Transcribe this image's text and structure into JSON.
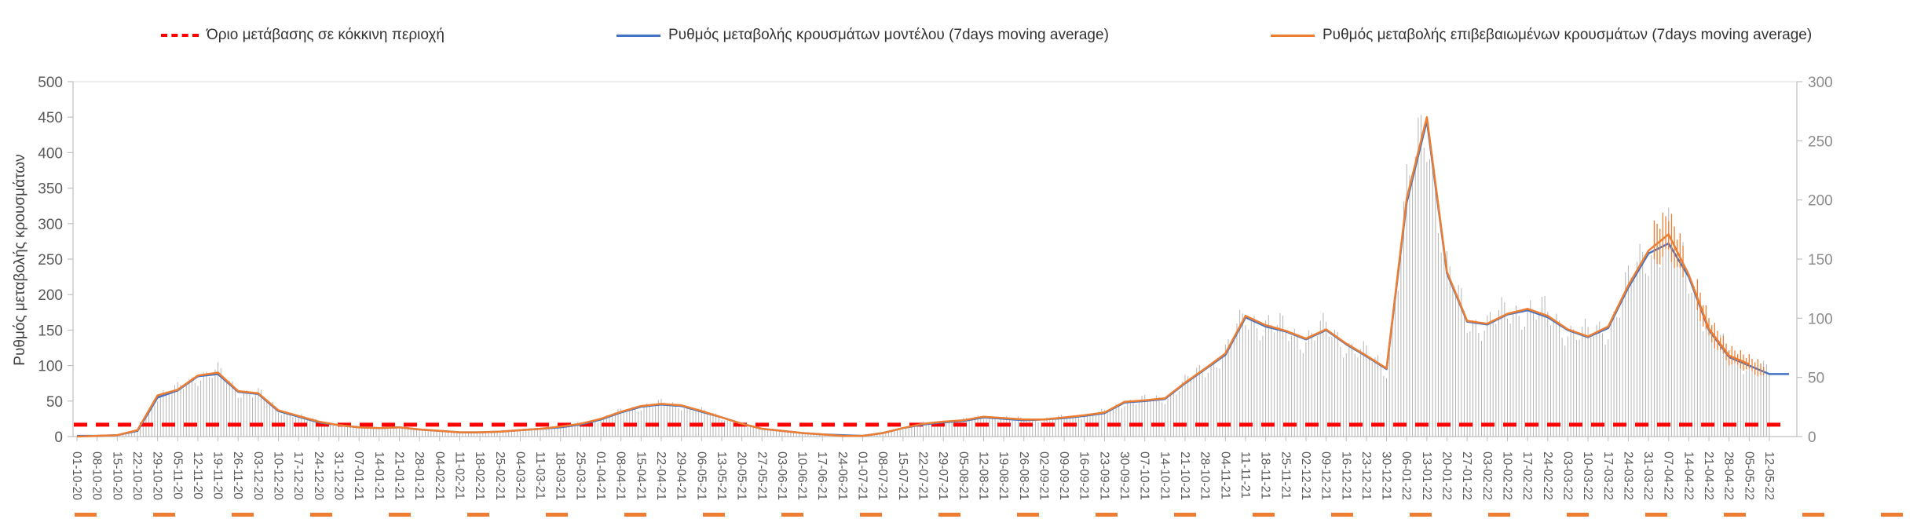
{
  "legend": {
    "items": [
      {
        "id": "threshold",
        "label": "Όριο μετάβασης σε κόκκινη περιοχή",
        "color": "#FF0000",
        "style": "dashed"
      },
      {
        "id": "model",
        "label": "Ρυθμός μεταβολής κρουσμάτων μοντέλου (7days moving average)",
        "color": "#4472C4",
        "style": "solid"
      },
      {
        "id": "confirmed",
        "label": "Ρυθμός μεταβολής επιβεβαιωμένων κρουσμάτων (7days moving average)",
        "color": "#ED7D31",
        "style": "solid"
      }
    ]
  },
  "chart_data": {
    "type": "line",
    "title": "",
    "ylabel_left": "Ρυθμός μεταβολής κρουσμάτων",
    "left_axis": {
      "min": 0,
      "max": 500,
      "step": 50
    },
    "right_axis": {
      "min": 0,
      "max": 300,
      "step": 50
    },
    "threshold": {
      "axis": "right",
      "value": 10,
      "color": "#FF0000",
      "label": "Όριο μετάβασης σε κόκκινη περιοχή"
    },
    "grid": false,
    "legend_position": "top",
    "x_labels": [
      "01-10-20",
      "08-10-20",
      "15-10-20",
      "22-10-20",
      "29-10-20",
      "05-11-20",
      "12-11-20",
      "19-11-20",
      "26-11-20",
      "03-12-20",
      "10-12-20",
      "17-12-20",
      "24-12-20",
      "31-12-20",
      "07-01-21",
      "14-01-21",
      "21-01-21",
      "28-01-21",
      "04-02-21",
      "11-02-21",
      "18-02-21",
      "25-02-21",
      "04-03-21",
      "11-03-21",
      "18-03-21",
      "25-03-21",
      "01-04-21",
      "08-04-21",
      "15-04-21",
      "22-04-21",
      "29-04-21",
      "06-05-21",
      "13-05-21",
      "20-05-21",
      "27-05-21",
      "03-06-21",
      "10-06-21",
      "17-06-21",
      "24-06-21",
      "01-07-21",
      "08-07-21",
      "15-07-21",
      "22-07-21",
      "29-07-21",
      "05-08-21",
      "12-08-21",
      "19-08-21",
      "26-08-21",
      "02-09-21",
      "09-09-21",
      "16-09-21",
      "23-09-21",
      "30-09-21",
      "07-10-21",
      "14-10-21",
      "21-10-21",
      "28-10-21",
      "04-11-21",
      "11-11-21",
      "18-11-21",
      "25-11-21",
      "02-12-21",
      "09-12-21",
      "16-12-21",
      "23-12-21",
      "30-12-21",
      "06-01-22",
      "13-01-22",
      "20-01-22",
      "27-01-22",
      "03-02-22",
      "10-02-22",
      "17-02-22",
      "24-02-22",
      "03-03-22",
      "10-03-22",
      "17-03-22",
      "24-03-22",
      "31-03-22",
      "07-04-22",
      "14-04-22",
      "21-04-22",
      "28-04-22",
      "05-05-22",
      "12-05-22"
    ],
    "series": [
      {
        "name": "Ρυθμός μεταβολής κρουσμάτων μοντέλου (7days moving average)",
        "color": "#4472C4",
        "extends_to_right": true,
        "values": [
          1,
          1,
          2,
          8,
          55,
          65,
          85,
          88,
          63,
          60,
          36,
          28,
          20,
          16,
          13,
          12,
          13,
          10,
          8,
          6,
          6,
          7,
          9,
          11,
          13,
          17,
          24,
          34,
          42,
          45,
          43,
          35,
          27,
          18,
          11,
          8,
          5,
          3,
          2,
          1,
          5,
          12,
          17,
          20,
          22,
          27,
          25,
          23,
          24,
          26,
          29,
          33,
          48,
          50,
          53,
          75,
          95,
          115,
          168,
          155,
          148,
          137,
          150,
          130,
          113,
          95,
          330,
          445,
          230,
          162,
          158,
          172,
          178,
          168,
          150,
          140,
          153,
          210,
          258,
          272,
          225,
          150,
          112,
          100,
          88
        ]
      },
      {
        "name": "Ρυθμός μεταβολής επιβεβαιωμένων κρουσμάτων (7days moving average)",
        "color": "#ED7D31",
        "extends_to_right": false,
        "values": [
          0,
          1,
          2,
          9,
          58,
          66,
          86,
          90,
          64,
          61,
          37,
          29,
          21,
          16,
          13,
          12,
          13,
          10,
          8,
          6,
          6,
          7,
          9,
          11,
          14,
          18,
          25,
          35,
          43,
          46,
          44,
          36,
          27,
          18,
          11,
          8,
          5,
          3,
          1,
          1,
          5,
          12,
          18,
          21,
          23,
          28,
          26,
          24,
          24,
          27,
          30,
          34,
          49,
          51,
          54,
          76,
          96,
          117,
          170,
          157,
          149,
          138,
          151,
          131,
          114,
          96,
          335,
          450,
          232,
          163,
          159,
          173,
          180,
          170,
          151,
          141,
          155,
          213,
          262,
          285,
          228,
          152,
          114,
          102,
          null
        ]
      }
    ],
    "daily_bars_color": "#b4b4b4"
  }
}
